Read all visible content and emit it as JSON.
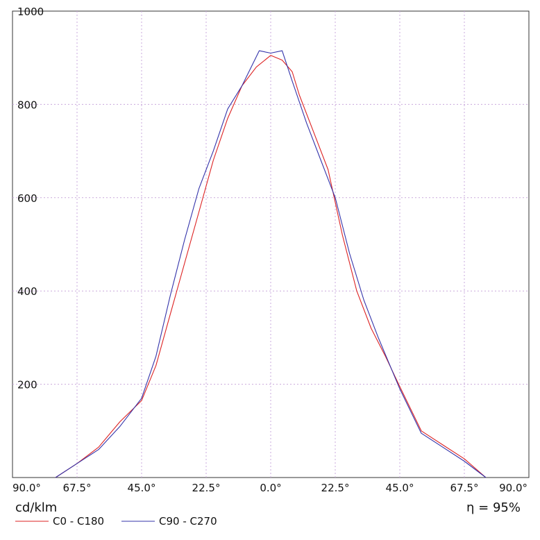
{
  "chart_data": {
    "type": "line",
    "unit_label": "cd/klm",
    "efficiency_label": "η = 95%",
    "xlim": [
      -90,
      90
    ],
    "ylim": [
      0,
      1000
    ],
    "x_ticks": [
      -90,
      -67.5,
      -45,
      -22.5,
      0,
      22.5,
      45,
      67.5,
      90
    ],
    "x_tick_labels": [
      "90.0°",
      "67.5°",
      "45.0°",
      "22.5°",
      "0.0°",
      "22.5°",
      "45.0°",
      "67.5°",
      "90.0°"
    ],
    "y_ticks": [
      200,
      400,
      600,
      800,
      1000
    ],
    "y_tick_labels": [
      "200",
      "400",
      "600",
      "800",
      "1000"
    ],
    "grid": true,
    "legend_position": "bottom-left",
    "series": [
      {
        "name": "C0 - C180",
        "color": "#dd2222",
        "x": [
          -75,
          -67.5,
          -60,
          -52.5,
          -45,
          -40,
          -35,
          -30,
          -25,
          -20,
          -15,
          -10,
          -5,
          0,
          4,
          7.5,
          10,
          15,
          20,
          25,
          30,
          35,
          40,
          45,
          52.5,
          60,
          67.5,
          75
        ],
        "y": [
          0,
          30,
          65,
          120,
          165,
          240,
          350,
          460,
          570,
          680,
          770,
          840,
          880,
          905,
          895,
          870,
          820,
          740,
          660,
          520,
          400,
          320,
          260,
          195,
          100,
          70,
          40,
          0
        ]
      },
      {
        "name": "C90 - C270",
        "color": "#3333aa",
        "x": [
          -75,
          -67.5,
          -60,
          -52.5,
          -45,
          -40,
          -35,
          -30,
          -25,
          -20,
          -15,
          -10,
          -4,
          0,
          4,
          7.5,
          12.5,
          17.5,
          22.5,
          27.5,
          32.5,
          37.5,
          45,
          52.5,
          60,
          67.5,
          75
        ],
        "y": [
          0,
          30,
          60,
          110,
          170,
          260,
          390,
          510,
          620,
          700,
          790,
          840,
          915,
          910,
          915,
          850,
          760,
          680,
          600,
          480,
          380,
          300,
          190,
          95,
          65,
          35,
          0
        ]
      }
    ]
  }
}
